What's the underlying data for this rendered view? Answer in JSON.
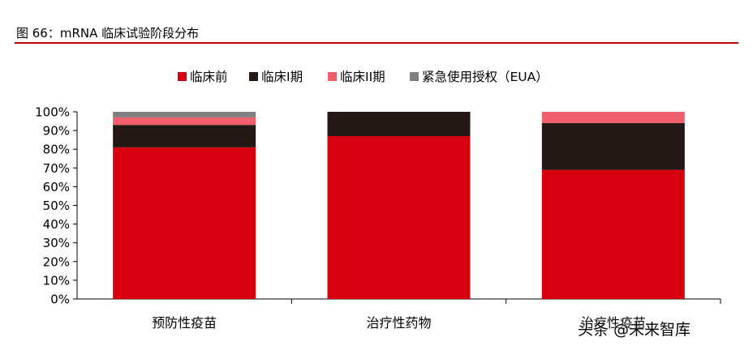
{
  "figure_title": "图 66：mRNA 临床试验阶段分布",
  "watermark": "头条 @未来智库",
  "chart_data": {
    "type": "bar",
    "stacked": true,
    "categories": [
      "预防性疫苗",
      "治疗性药物",
      "治疗性疫苗"
    ],
    "series": [
      {
        "name": "临床前",
        "color": "#d7000f",
        "values": [
          81,
          87,
          69
        ]
      },
      {
        "name": "临床I期",
        "color": "#231815",
        "values": [
          12,
          13,
          25
        ]
      },
      {
        "name": "临床II期",
        "color": "#f25f6c",
        "values": [
          4,
          0,
          6
        ]
      },
      {
        "name": "紧急使用授权（EUA）",
        "color": "#7f7f7f",
        "values": [
          3,
          0,
          0
        ]
      }
    ],
    "ylim": [
      0,
      100
    ],
    "yticks": [
      "0%",
      "10%",
      "20%",
      "30%",
      "40%",
      "50%",
      "60%",
      "70%",
      "80%",
      "90%",
      "100%"
    ],
    "legend_position": "top",
    "grid": false
  }
}
